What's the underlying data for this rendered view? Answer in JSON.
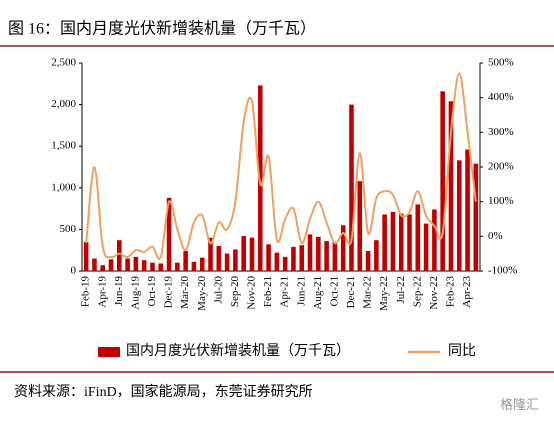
{
  "title": "图 16：国内月度光伏新增装机量（万千瓦）",
  "source": "资料来源：iFinD，国家能源局，东莞证券研究所",
  "watermark": "格隆汇",
  "chart_data": {
    "type": "bar_line",
    "categories": [
      "Feb-19",
      null,
      "Apr-19",
      null,
      "Jun-19",
      null,
      "Aug-19",
      null,
      "Oct-19",
      null,
      "Dec-19",
      null,
      "Mar-20",
      null,
      "May-20",
      null,
      "Jul-20",
      null,
      "Sep-20",
      null,
      "Nov-20",
      null,
      "Feb-21",
      null,
      "Apr-21",
      null,
      "Jun-21",
      null,
      "Aug-21",
      null,
      "Oct-21",
      null,
      "Dec-21",
      null,
      "Mar-22",
      null,
      "May-22",
      null,
      "Jul-22",
      null,
      "Sep-22",
      null,
      "Nov-22",
      null,
      "Feb-23",
      null,
      "Apr-23",
      null
    ],
    "series": [
      {
        "name": "国内月度光伏新增装机量（万千瓦）",
        "color": "#c00000",
        "type": "bar",
        "values": [
          350,
          150,
          70,
          140,
          370,
          150,
          170,
          130,
          100,
          90,
          880,
          100,
          240,
          110,
          160,
          400,
          300,
          210,
          260,
          420,
          400,
          2230,
          320,
          220,
          170,
          290,
          310,
          440,
          410,
          360,
          350,
          550,
          2000,
          1080,
          240,
          370,
          680,
          710,
          690,
          680,
          800,
          570,
          740,
          2160,
          2040,
          1330,
          1460,
          1290
        ]
      },
      {
        "name": "同比",
        "color": "#f0a060",
        "type": "line",
        "axis": "y2",
        "values": [
          -20,
          200,
          -30,
          -60,
          -50,
          -60,
          -40,
          -45,
          -30,
          -60,
          100,
          20,
          -40,
          40,
          60,
          -20,
          40,
          20,
          100,
          330,
          390,
          150,
          230,
          -10,
          50,
          80,
          -20,
          50,
          100,
          40,
          -20,
          10,
          -10,
          240,
          10,
          110,
          130,
          120,
          60,
          70,
          130,
          60,
          30,
          10,
          300,
          470,
          300,
          100
        ]
      }
    ],
    "ylim": [
      0,
      2500
    ],
    "yticks": [
      0,
      500,
      {
        "value": 1000,
        "label": "1,000"
      },
      {
        "value": 1500,
        "label": "1,500"
      },
      {
        "value": 2000,
        "label": "2,000"
      },
      {
        "value": 2500,
        "label": "2,500"
      }
    ],
    "y2lim": [
      -100,
      500
    ],
    "y2ticks": [
      {
        "value": -100,
        "label": "-100%"
      },
      {
        "value": 0,
        "label": "0%"
      },
      {
        "value": 100,
        "label": "100%"
      },
      {
        "value": 200,
        "label": "200%"
      },
      {
        "value": 300,
        "label": "300%"
      },
      {
        "value": 400,
        "label": "400%"
      },
      {
        "value": 500,
        "label": "500%"
      }
    ]
  }
}
